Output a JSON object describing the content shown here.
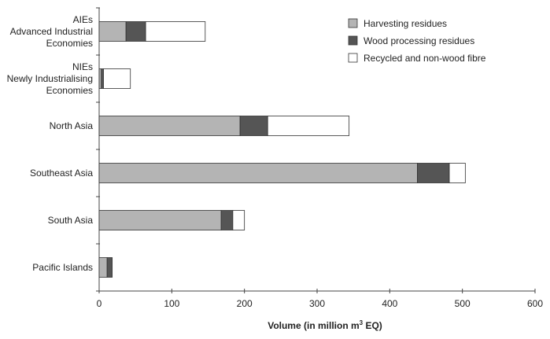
{
  "chart_data": {
    "type": "bar",
    "orientation": "horizontal",
    "stacked": true,
    "title": "",
    "xlabel": "Volume (in million m³ EQ)",
    "xlabel_parts": {
      "main": "Volume (in million m",
      "sup": "3",
      "end": " EQ)"
    },
    "ylabel": "",
    "xlim": [
      0,
      600
    ],
    "xticks": [
      "0",
      "100",
      "200",
      "300",
      "400",
      "500",
      "600"
    ],
    "grid": false,
    "legend_position": "top-right",
    "categories": [
      [
        "AIEs",
        "Advanced Industrial",
        "Economies"
      ],
      [
        "NIEs",
        "Newly Industrialising",
        "Economies"
      ],
      [
        "North Asia"
      ],
      [
        "Southeast Asia"
      ],
      [
        "South Asia"
      ],
      [
        "Pacific Islands"
      ]
    ],
    "series": [
      {
        "name": "Harvesting residues",
        "color": "#b4b4b4",
        "values": [
          37,
          3,
          194,
          438,
          168,
          11
        ]
      },
      {
        "name": "Wood processing residues",
        "color": "#555555",
        "values": [
          27,
          3,
          38,
          44,
          16,
          7
        ]
      },
      {
        "name": "Recycled and non-wood fibre",
        "color": "#ffffff",
        "values": [
          82,
          37,
          112,
          22,
          16,
          0
        ]
      }
    ]
  }
}
